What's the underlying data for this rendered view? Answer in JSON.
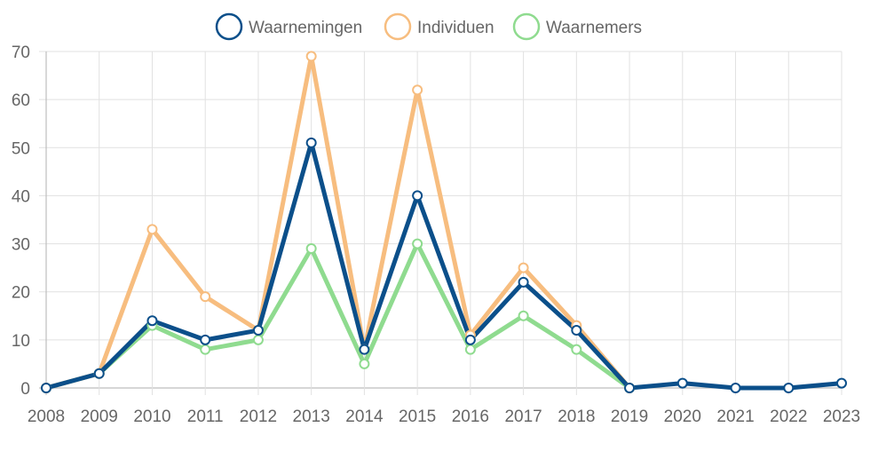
{
  "chart_data": {
    "type": "line",
    "title": "",
    "xlabel": "",
    "ylabel": "",
    "categories": [
      "2008",
      "2009",
      "2010",
      "2011",
      "2012",
      "2013",
      "2014",
      "2015",
      "2016",
      "2017",
      "2018",
      "2019",
      "2020",
      "2021",
      "2022",
      "2023"
    ],
    "ylim": [
      0,
      70
    ],
    "yticks": [
      0,
      10,
      20,
      30,
      40,
      50,
      60,
      70
    ],
    "grid": true,
    "legend_position": "top-center",
    "series": [
      {
        "name": "Waarnemers",
        "color": "#8fdb8f",
        "values": [
          0,
          3,
          13,
          8,
          10,
          29,
          5,
          30,
          8,
          15,
          8,
          0,
          null,
          null,
          null,
          null
        ]
      },
      {
        "name": "Individuen",
        "color": "#f7bd7f",
        "values": [
          0,
          3,
          33,
          19,
          12,
          69,
          8,
          62,
          11,
          25,
          13,
          0,
          null,
          null,
          null,
          null
        ]
      },
      {
        "name": "Waarnemingen",
        "color": "#0b4f8a",
        "values": [
          0,
          3,
          14,
          10,
          12,
          51,
          8,
          40,
          10,
          22,
          12,
          0,
          1,
          0,
          0,
          1
        ]
      }
    ],
    "legend": [
      "Waarnemingen",
      "Individuen",
      "Waarnemers"
    ]
  }
}
